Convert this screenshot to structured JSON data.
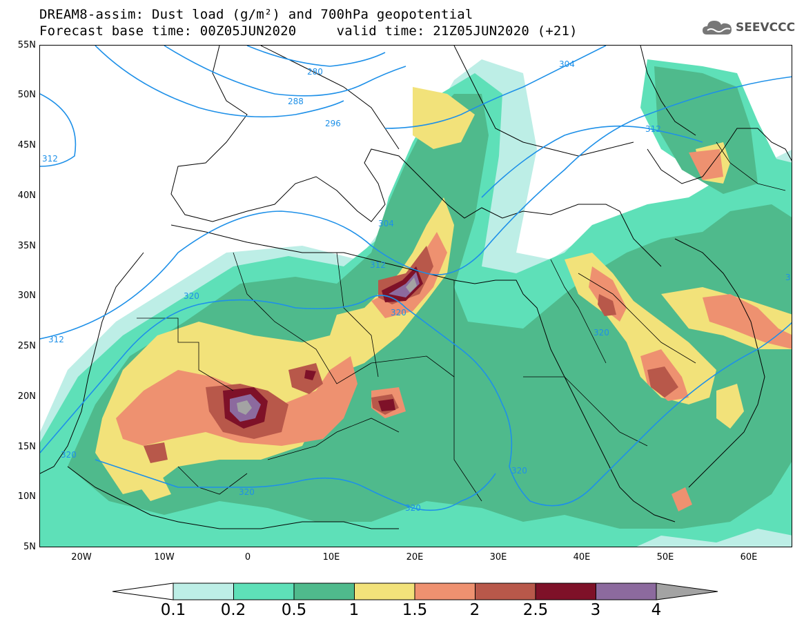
{
  "header": {
    "title_line1": "DREAM8-assim: Dust load (g/m²) and 700hPa geopotential",
    "title_line2": "Forecast base time: 00Z05JUN2020     valid time: 21Z05JUN2020 (+21)"
  },
  "logo": {
    "icon": "cloud-icon",
    "text": "SEEVCCC"
  },
  "axes": {
    "lat_labels": [
      "55N",
      "50N",
      "45N",
      "40N",
      "35N",
      "30N",
      "25N",
      "20N",
      "15N",
      "10N",
      "5N"
    ],
    "lon_labels": [
      "20W",
      "10W",
      "0",
      "10E",
      "20E",
      "30E",
      "40E",
      "50E",
      "60E"
    ]
  },
  "contour_labels": [
    "280",
    "288",
    "296",
    "304",
    "312",
    "312",
    "304",
    "312",
    "320",
    "320",
    "320",
    "320",
    "320",
    "320",
    "320",
    "312",
    "3"
  ],
  "colorbar": {
    "tick_labels": [
      "0.1",
      "0.2",
      "0.5",
      "1",
      "1.5",
      "2",
      "2.5",
      "3",
      "4"
    ],
    "colors": [
      "#ffffff",
      "#bdeee6",
      "#5ee0b8",
      "#4fba8c",
      "#f2e27a",
      "#ee9170",
      "#b8584a",
      "#7e1128",
      "#8c6a9e",
      "#a3a3a3"
    ]
  },
  "map_colors": {
    "land": "#ffffff",
    "coast": "#000000",
    "contour": "#1e90e8"
  }
}
